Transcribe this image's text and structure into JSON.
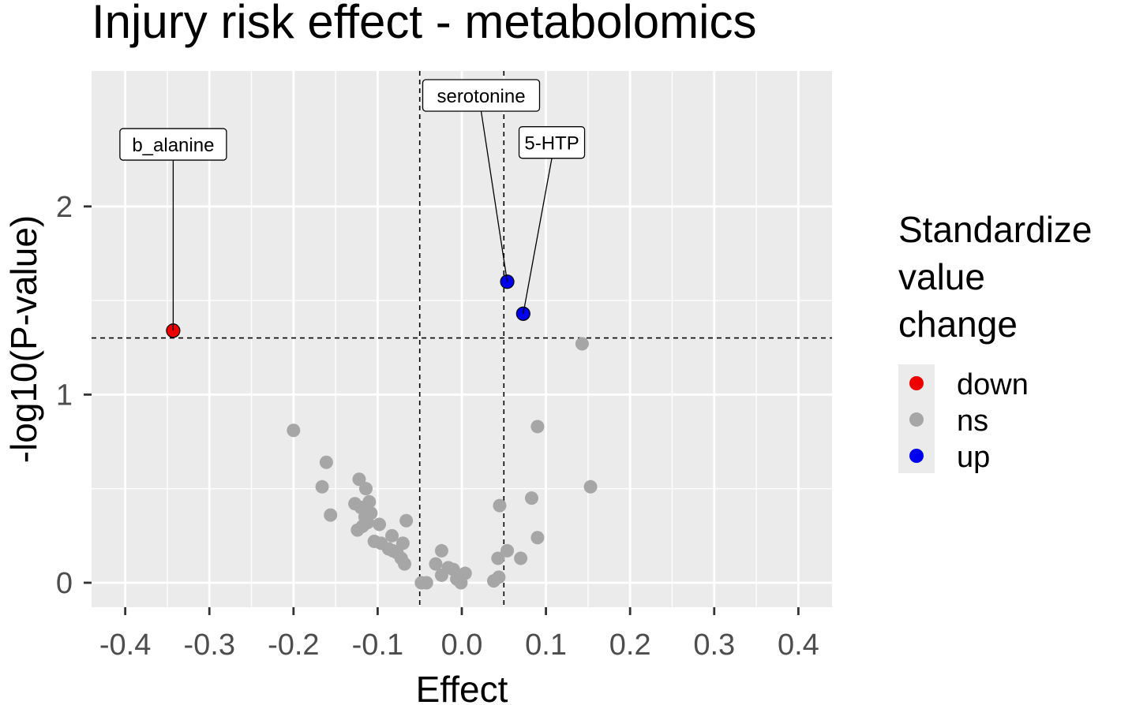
{
  "chart_data": {
    "type": "scatter",
    "title": "Injury risk effect - metabolomics",
    "xlabel": "Effect",
    "ylabel": "-log10(P-value)",
    "xlim": [
      -0.44,
      0.44
    ],
    "ylim": [
      -0.13,
      2.72
    ],
    "x_ticks": [
      -0.4,
      -0.3,
      -0.2,
      -0.1,
      0.0,
      0.1,
      0.2,
      0.3,
      0.4
    ],
    "x_tick_labels": [
      "-0.4",
      "-0.3",
      "-0.2",
      "-0.1",
      "0.0",
      "0.1",
      "0.2",
      "0.3",
      "0.4"
    ],
    "y_ticks": [
      0,
      1,
      2
    ],
    "y_tick_labels": [
      "0",
      "1",
      "2"
    ],
    "reference_lines": {
      "vertical": [
        -0.05,
        0.05
      ],
      "horizontal": [
        1.301
      ]
    },
    "grid": true,
    "legend": {
      "title_lines": [
        "Standardize",
        "value",
        "change"
      ],
      "position": "right",
      "items": [
        {
          "label": "down",
          "color": "#ee0000"
        },
        {
          "label": "ns",
          "color": "#a6a6a6"
        },
        {
          "label": "up",
          "color": "#0000ee"
        }
      ]
    },
    "series": [
      {
        "name": "down",
        "color": "#ee0000",
        "points": [
          {
            "x": -0.343,
            "y": 1.34,
            "label": "b_alanine",
            "lx": -0.343,
            "ly": 2.33
          }
        ]
      },
      {
        "name": "up",
        "color": "#0000ee",
        "points": [
          {
            "x": 0.054,
            "y": 1.6,
            "label": "serotonine",
            "lx": 0.023,
            "ly": 2.59
          },
          {
            "x": 0.073,
            "y": 1.43,
            "label": "5-HTP",
            "lx": 0.107,
            "ly": 2.34
          }
        ]
      },
      {
        "name": "ns",
        "color": "#a6a6a6",
        "points": [
          {
            "x": 0.143,
            "y": 1.27
          },
          {
            "x": 0.09,
            "y": 0.83
          },
          {
            "x": 0.153,
            "y": 0.51
          },
          {
            "x": 0.09,
            "y": 0.24
          },
          {
            "x": 0.083,
            "y": 0.45
          },
          {
            "x": 0.07,
            "y": 0.13
          },
          {
            "x": 0.054,
            "y": 0.17
          },
          {
            "x": 0.045,
            "y": 0.41
          },
          {
            "x": 0.043,
            "y": 0.13
          },
          {
            "x": 0.044,
            "y": 0.03
          },
          {
            "x": 0.038,
            "y": 0.01
          },
          {
            "x": 0.004,
            "y": 0.05
          },
          {
            "x": -0.001,
            "y": 0.0
          },
          {
            "x": -0.006,
            "y": 0.02
          },
          {
            "x": -0.01,
            "y": 0.07
          },
          {
            "x": -0.016,
            "y": 0.08
          },
          {
            "x": -0.024,
            "y": 0.04
          },
          {
            "x": -0.031,
            "y": 0.1
          },
          {
            "x": -0.024,
            "y": 0.17
          },
          {
            "x": -0.042,
            "y": 0.0
          },
          {
            "x": -0.048,
            "y": 0.0
          },
          {
            "x": -0.066,
            "y": 0.33
          },
          {
            "x": -0.068,
            "y": 0.1
          },
          {
            "x": -0.07,
            "y": 0.21
          },
          {
            "x": -0.072,
            "y": 0.13
          },
          {
            "x": -0.077,
            "y": 0.16
          },
          {
            "x": -0.082,
            "y": 0.17
          },
          {
            "x": -0.083,
            "y": 0.25
          },
          {
            "x": -0.087,
            "y": 0.18
          },
          {
            "x": -0.096,
            "y": 0.21
          },
          {
            "x": -0.098,
            "y": 0.31
          },
          {
            "x": -0.104,
            "y": 0.22
          },
          {
            "x": -0.108,
            "y": 0.37
          },
          {
            "x": -0.11,
            "y": 0.43
          },
          {
            "x": -0.115,
            "y": 0.35
          },
          {
            "x": -0.114,
            "y": 0.5
          },
          {
            "x": -0.12,
            "y": 0.4
          },
          {
            "x": -0.122,
            "y": 0.55
          },
          {
            "x": -0.124,
            "y": 0.28
          },
          {
            "x": -0.127,
            "y": 0.42
          },
          {
            "x": -0.156,
            "y": 0.36
          },
          {
            "x": -0.161,
            "y": 0.64
          },
          {
            "x": -0.166,
            "y": 0.51
          },
          {
            "x": -0.2,
            "y": 0.81
          },
          {
            "x": -0.112,
            "y": 0.32
          },
          {
            "x": -0.118,
            "y": 0.3
          }
        ]
      }
    ]
  }
}
